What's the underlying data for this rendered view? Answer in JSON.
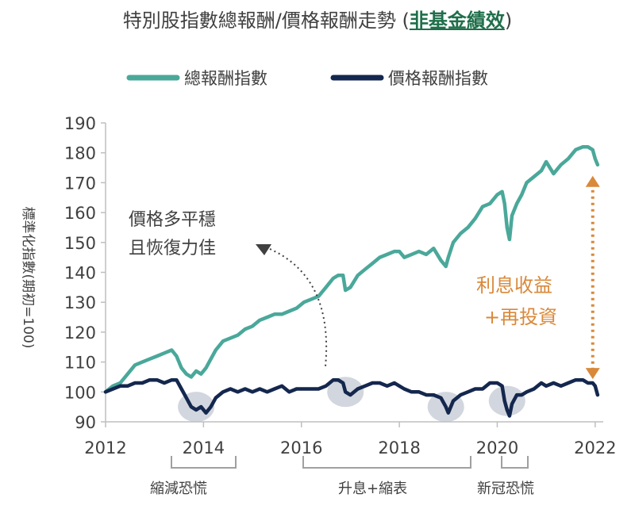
{
  "title": {
    "main": "特別股指數總報酬/價格報酬走勢 (",
    "highlight": "非基金績效",
    "end": ")"
  },
  "colors": {
    "total": "#4aa89a",
    "price": "#14274e",
    "orange": "#d9893a",
    "bubble": "#c7ccd6",
    "axis": "#bfbfbf"
  },
  "chart_data": {
    "type": "line",
    "ylabel": "標準化指數(期初=100)",
    "ylim": [
      90,
      190
    ],
    "yticks": [
      "190",
      "180",
      "170",
      "160",
      "150",
      "140",
      "130",
      "120",
      "110",
      "100",
      "90"
    ],
    "xlim": [
      2012,
      2022.1
    ],
    "xticks": [
      "2012",
      "2014",
      "2016",
      "2018",
      "2020",
      "2022"
    ],
    "legend": [
      "總報酬指數",
      "價格報酬指數"
    ],
    "series": [
      {
        "name": "總報酬指數",
        "x": [
          2012.0,
          2012.15,
          2012.3,
          2012.45,
          2012.6,
          2012.75,
          2012.9,
          2013.05,
          2013.2,
          2013.35,
          2013.45,
          2013.55,
          2013.65,
          2013.75,
          2013.85,
          2013.95,
          2014.05,
          2014.15,
          2014.25,
          2014.4,
          2014.55,
          2014.7,
          2014.85,
          2015.0,
          2015.15,
          2015.3,
          2015.45,
          2015.6,
          2015.75,
          2015.9,
          2016.05,
          2016.2,
          2016.35,
          2016.5,
          2016.65,
          2016.75,
          2016.85,
          2016.9,
          2017.0,
          2017.15,
          2017.3,
          2017.45,
          2017.6,
          2017.75,
          2017.9,
          2018.0,
          2018.1,
          2018.25,
          2018.4,
          2018.55,
          2018.7,
          2018.85,
          2018.95,
          2019.0,
          2019.1,
          2019.25,
          2019.4,
          2019.55,
          2019.7,
          2019.85,
          2020.0,
          2020.1,
          2020.15,
          2020.2,
          2020.25,
          2020.3,
          2020.4,
          2020.5,
          2020.6,
          2020.75,
          2020.9,
          2021.0,
          2021.15,
          2021.3,
          2021.45,
          2021.6,
          2021.75,
          2021.85,
          2021.95,
          2022.0,
          2022.05
        ],
        "y": [
          100,
          102,
          103,
          106,
          109,
          110,
          111,
          112,
          113,
          114,
          112,
          108,
          106,
          105,
          107,
          106,
          108,
          111,
          114,
          117,
          118,
          119,
          121,
          122,
          124,
          125,
          126,
          126,
          127,
          128,
          130,
          131,
          132,
          135,
          138,
          139,
          139,
          134,
          135,
          139,
          141,
          143,
          145,
          146,
          147,
          147,
          145,
          146,
          147,
          146,
          148,
          144,
          142,
          145,
          150,
          153,
          155,
          158,
          162,
          163,
          166,
          167,
          163,
          155,
          151,
          159,
          163,
          166,
          170,
          172,
          174,
          177,
          173,
          176,
          178,
          181,
          182,
          182,
          181,
          178,
          176
        ]
      },
      {
        "name": "價格報酬指數",
        "x": [
          2012.0,
          2012.15,
          2012.3,
          2012.45,
          2012.6,
          2012.75,
          2012.9,
          2013.05,
          2013.2,
          2013.35,
          2013.45,
          2013.55,
          2013.65,
          2013.75,
          2013.85,
          2013.95,
          2014.05,
          2014.15,
          2014.25,
          2014.4,
          2014.55,
          2014.7,
          2014.85,
          2015.0,
          2015.15,
          2015.3,
          2015.45,
          2015.6,
          2015.75,
          2015.9,
          2016.05,
          2016.2,
          2016.35,
          2016.5,
          2016.65,
          2016.75,
          2016.85,
          2016.9,
          2017.0,
          2017.15,
          2017.3,
          2017.45,
          2017.6,
          2017.75,
          2017.9,
          2018.0,
          2018.1,
          2018.25,
          2018.4,
          2018.55,
          2018.7,
          2018.85,
          2018.95,
          2019.0,
          2019.1,
          2019.25,
          2019.4,
          2019.55,
          2019.7,
          2019.85,
          2020.0,
          2020.1,
          2020.15,
          2020.2,
          2020.25,
          2020.3,
          2020.4,
          2020.5,
          2020.6,
          2020.75,
          2020.9,
          2021.0,
          2021.15,
          2021.3,
          2021.45,
          2021.6,
          2021.75,
          2021.85,
          2021.95,
          2022.0,
          2022.05
        ],
        "y": [
          100,
          101,
          102,
          102,
          103,
          103,
          104,
          104,
          103,
          104,
          104,
          101,
          98,
          95,
          94,
          95,
          93,
          95,
          98,
          100,
          101,
          100,
          101,
          100,
          101,
          100,
          101,
          102,
          100,
          101,
          101,
          101,
          101,
          102,
          104,
          104,
          103,
          100,
          99,
          101,
          102,
          103,
          103,
          102,
          103,
          102,
          101,
          100,
          100,
          99,
          99,
          98,
          95,
          93,
          97,
          99,
          100,
          101,
          101,
          103,
          103,
          102,
          97,
          94,
          92,
          96,
          99,
          99,
          100,
          101,
          103,
          102,
          103,
          102,
          103,
          104,
          104,
          103,
          103,
          102,
          99
        ]
      }
    ],
    "annotations": {
      "stable": [
        "價格多平穩",
        "且恢復力佳"
      ],
      "income": [
        "利息收益",
        "+再投資"
      ],
      "periods": [
        "縮減恐慌",
        "升息+縮表",
        "新冠恐慌"
      ]
    }
  }
}
